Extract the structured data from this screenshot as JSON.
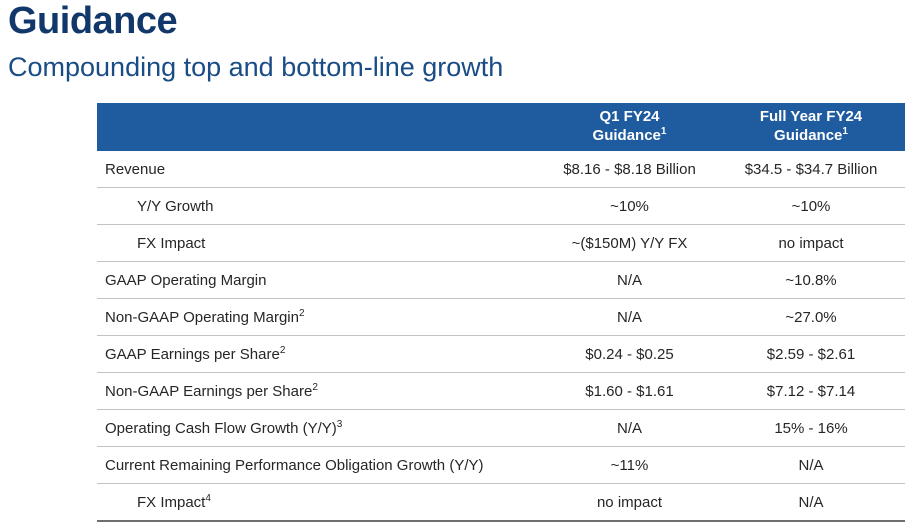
{
  "page": {
    "title": "Guidance",
    "subtitle": "Compounding top and bottom-line growth"
  },
  "colors": {
    "title_text": "#12386B",
    "subtitle_text": "#1A4C85",
    "header_bg": "#1F5C9F",
    "header_text": "#FFFFFF",
    "row_text": "#262626",
    "row_separator": "#C3C3C3",
    "bottom_border": "#6E6E6E"
  },
  "table": {
    "columns": [
      {
        "line1": "Q1 FY24",
        "line2": "Guidance",
        "sup": "1"
      },
      {
        "line1": "Full Year FY24",
        "line2": "Guidance",
        "sup": "1"
      }
    ],
    "rows": [
      {
        "label": "Revenue",
        "sup": "",
        "indent": false,
        "q1": "$8.16 - $8.18 Billion",
        "fy": "$34.5 - $34.7 Billion"
      },
      {
        "label": "Y/Y Growth",
        "sup": "",
        "indent": true,
        "q1": "~10%",
        "fy": "~10%"
      },
      {
        "label": "FX Impact",
        "sup": "",
        "indent": true,
        "q1": "~($150M) Y/Y FX",
        "fy": "no impact"
      },
      {
        "label": "GAAP Operating Margin",
        "sup": "",
        "indent": false,
        "q1": "N/A",
        "fy": "~10.8%"
      },
      {
        "label": "Non-GAAP Operating Margin",
        "sup": "2",
        "indent": false,
        "q1": "N/A",
        "fy": "~27.0%"
      },
      {
        "label": "GAAP Earnings per Share",
        "sup": "2",
        "indent": false,
        "q1": "$0.24 - $0.25",
        "fy": "$2.59 - $2.61"
      },
      {
        "label": "Non-GAAP Earnings per Share",
        "sup": "2",
        "indent": false,
        "q1": "$1.60 - $1.61",
        "fy": "$7.12 - $7.14"
      },
      {
        "label": "Operating Cash Flow Growth (Y/Y)",
        "sup": "3",
        "indent": false,
        "q1": "N/A",
        "fy": "15% - 16%"
      },
      {
        "label": "Current Remaining Performance Obligation Growth (Y/Y)",
        "sup": "",
        "indent": false,
        "q1": "~11%",
        "fy": "N/A"
      },
      {
        "label": "FX Impact",
        "sup": "4",
        "indent": true,
        "q1": "no impact",
        "fy": "N/A"
      }
    ]
  }
}
